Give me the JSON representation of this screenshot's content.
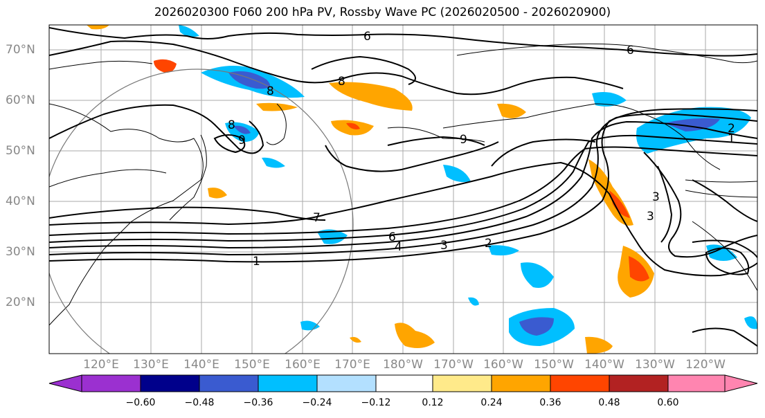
{
  "title": "2026020300 F060 200 hPa PV, Rossby Wave PC (2026020500 - 2026020900)",
  "lat_labels": [
    "70°N",
    "60°N",
    "50°N",
    "40°N",
    "30°N",
    "20°N"
  ],
  "lon_labels": [
    "120°E",
    "130°E",
    "140°E",
    "150°E",
    "160°E",
    "170°E",
    "180°W",
    "170°W",
    "160°W",
    "150°W",
    "140°W",
    "130°W",
    "120°W"
  ],
  "contour_labels": [
    "6",
    "6",
    "8",
    "8",
    "8",
    "9",
    "9",
    "7",
    "6",
    "4",
    "3",
    "2",
    "1",
    "2",
    "1",
    "3",
    "3"
  ],
  "colorbar": {
    "ticks": [
      "−0.60",
      "−0.48",
      "−0.36",
      "−0.24",
      "−0.12",
      "0.12",
      "0.24",
      "0.36",
      "0.48",
      "0.60"
    ],
    "colors": [
      "#9b30d0",
      "#00008b",
      "#3a5bd0",
      "#00bfff",
      "#b3e0ff",
      "#ffffff",
      "#ffea8a",
      "#ffa500",
      "#ff4500",
      "#b22222",
      "#ff85b0"
    ]
  },
  "palette": {
    "neg_light": "#b3e0ff",
    "neg_mid": "#00bfff",
    "neg_strong": "#3a5bd0",
    "neg_max": "#00008b",
    "pos_light": "#ffea8a",
    "pos_mid": "#ffa500",
    "pos_strong": "#ff4500",
    "pos_max": "#b22222"
  }
}
